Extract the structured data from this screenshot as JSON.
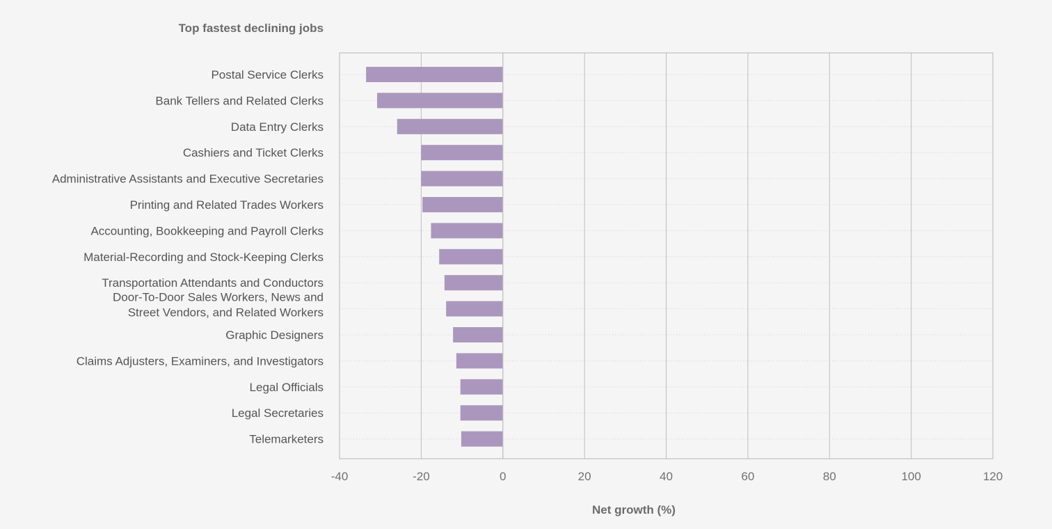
{
  "chart_data": {
    "type": "bar",
    "orientation": "horizontal",
    "title": "Top fastest declining jobs",
    "xlabel": "Net growth (%)",
    "ylabel": "",
    "xlim": [
      -40,
      120
    ],
    "xticks": [
      -40,
      -20,
      0,
      20,
      40,
      60,
      80,
      100,
      120
    ],
    "grid": {
      "vertical": "solid",
      "horizontal": "dotted"
    },
    "legend": "none",
    "categories": [
      [
        "Postal Service Clerks"
      ],
      [
        "Bank Tellers and Related Clerks"
      ],
      [
        "Data Entry Clerks"
      ],
      [
        "Cashiers and Ticket Clerks"
      ],
      [
        "Administrative Assistants and Executive Secretaries"
      ],
      [
        "Printing and Related Trades Workers"
      ],
      [
        "Accounting, Bookkeeping and Payroll Clerks"
      ],
      [
        "Material-Recording and Stock-Keeping Clerks"
      ],
      [
        "Transportation Attendants and Conductors"
      ],
      [
        "Door-To-Door Sales Workers, News and",
        "Street Vendors, and Related Workers"
      ],
      [
        "Graphic Designers"
      ],
      [
        "Claims Adjusters, Examiners, and Investigators"
      ],
      [
        "Legal Officials"
      ],
      [
        "Legal Secretaries"
      ],
      [
        "Telemarketers"
      ]
    ],
    "values": [
      -33.5,
      -30.8,
      -25.9,
      -20.0,
      -20.0,
      -19.7,
      -17.6,
      -15.6,
      -14.3,
      -13.9,
      -12.2,
      -11.4,
      -10.4,
      -10.4,
      -10.2
    ]
  },
  "colors": {
    "background": "#f5f5f5",
    "bar": "#ab97bd",
    "axis_text": "#707070",
    "label_text": "#555555",
    "title_text": "#6b6b6b",
    "grid_vertical": "#bdbdbd",
    "grid_horizontal": "#cfcfcf",
    "frame": "#b5b5b5"
  }
}
